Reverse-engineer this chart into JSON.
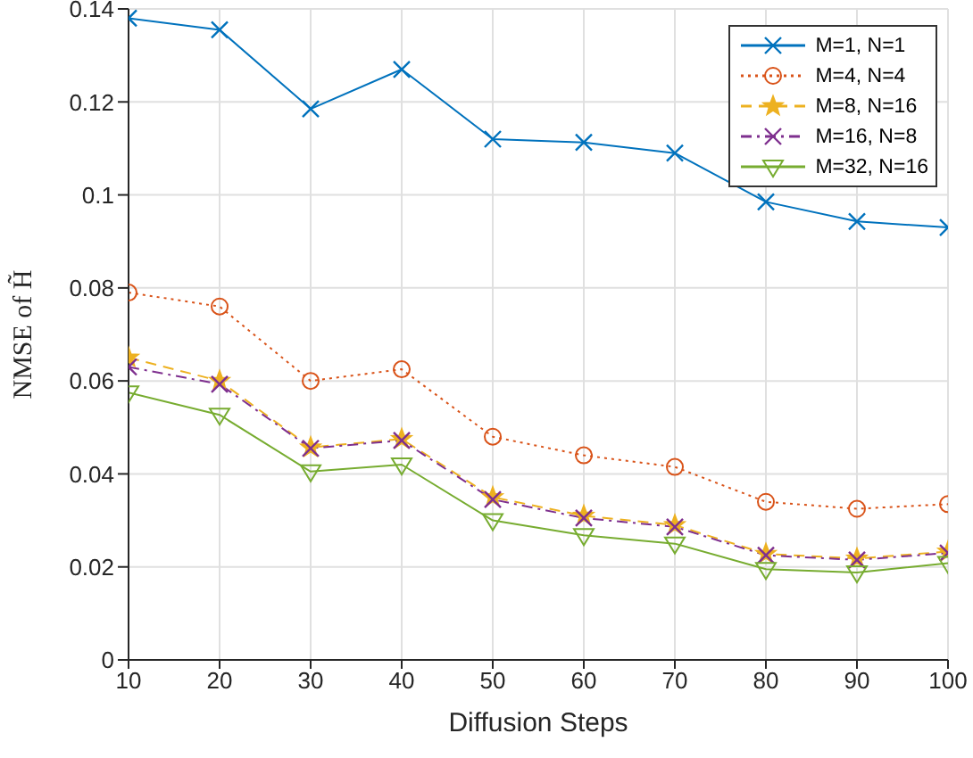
{
  "chart_data": {
    "type": "line",
    "xlabel": "Diffusion Steps",
    "ylabel": "NMSE of H̃",
    "x": [
      10,
      20,
      30,
      40,
      50,
      60,
      70,
      80,
      90,
      100
    ],
    "xlim": [
      10,
      100
    ],
    "xticks": [
      10,
      20,
      30,
      40,
      50,
      60,
      70,
      80,
      90,
      100
    ],
    "ylim": [
      0,
      0.14
    ],
    "yticks": [
      0,
      0.02,
      0.04,
      0.06,
      0.08,
      0.1,
      0.12,
      0.14
    ],
    "grid": true,
    "legend": "top right",
    "series": [
      {
        "name": "M=1, N=1",
        "color": "#0072bd",
        "marker": "cross",
        "line_style": "solid",
        "values": [
          0.138,
          0.1355,
          0.1185,
          0.127,
          0.112,
          0.1113,
          0.109,
          0.0985,
          0.0943,
          0.093
        ]
      },
      {
        "name": "M=4, N=4",
        "color": "#d95319",
        "marker": "circle",
        "line_style": "dotted",
        "values": [
          0.079,
          0.076,
          0.06,
          0.0625,
          0.048,
          0.044,
          0.0415,
          0.034,
          0.0325,
          0.0335
        ]
      },
      {
        "name": "M=8, N=16",
        "color": "#edb120",
        "marker": "star",
        "line_style": "dashed",
        "values": [
          0.065,
          0.06,
          0.0457,
          0.0475,
          0.035,
          0.031,
          0.029,
          0.0228,
          0.0218,
          0.0233
        ]
      },
      {
        "name": "M=16, N=8",
        "color": "#7e2f8e",
        "marker": "cross",
        "line_style": "dashdot",
        "values": [
          0.063,
          0.0593,
          0.0455,
          0.0472,
          0.0345,
          0.0305,
          0.0286,
          0.0225,
          0.0215,
          0.023
        ]
      },
      {
        "name": "M=32, N=16",
        "color": "#77ac30",
        "marker": "triangle",
        "line_style": "solid",
        "values": [
          0.0575,
          0.0527,
          0.0405,
          0.042,
          0.03,
          0.0268,
          0.025,
          0.0195,
          0.0188,
          0.0208
        ]
      }
    ]
  }
}
